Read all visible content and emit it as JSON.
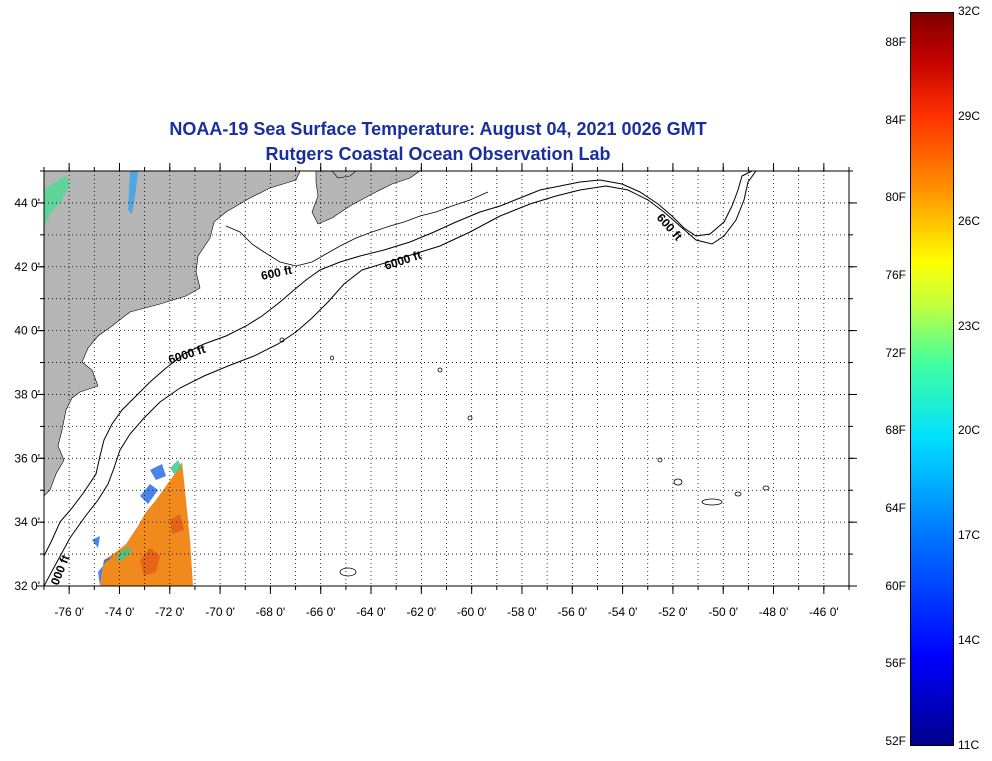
{
  "title": {
    "line1": "NOAA-19 Sea Surface Temperature:  August 04, 2021 0026 GMT",
    "line2": "Rutgers Coastal Ocean Observation Lab"
  },
  "colors": {
    "title": "#1a2f9e",
    "land": "#b5b5b5",
    "warm_sst": "#f08a1c",
    "cool_sst": "#2d6ee0"
  },
  "map": {
    "lon_labels": [
      "-76 0'",
      "-74 0'",
      "-72 0'",
      "-70 0'",
      "-68 0'",
      "-66 0'",
      "-64 0'",
      "-62 0'",
      "-60 0'",
      "-58 0'",
      "-56 0'",
      "-54 0'",
      "-52 0'",
      "-50 0'",
      "-48 0'",
      "-46 0'"
    ],
    "lat_labels": [
      "44 0'",
      "42 0'",
      "40 0'",
      "38 0'",
      "36 0'",
      "34 0'",
      "32 0'"
    ],
    "contour_labels": {
      "ft600_north": "600 ft",
      "ft6000_north": "6000 ft",
      "ft6000_south": "6000 ft",
      "ft600_east": "600 ft",
      "ft_south_edge": "000 ft"
    },
    "lon_range": [
      -77,
      -45
    ],
    "lat_range": [
      32,
      45
    ]
  },
  "colorbar": {
    "min_c": 11,
    "max_c": 32,
    "celsius_labels": [
      "32C",
      "29C",
      "26C",
      "23C",
      "20C",
      "17C",
      "14C",
      "11C"
    ],
    "fahrenheit_labels": [
      "88F",
      "84F",
      "80F",
      "76F",
      "72F",
      "68F",
      "64F",
      "60F",
      "56F",
      "52F"
    ]
  }
}
